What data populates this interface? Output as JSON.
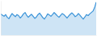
{
  "chart_data": {
    "type": "area",
    "x": [
      1,
      2,
      3,
      4,
      5,
      6,
      7,
      8,
      9,
      10,
      11,
      12,
      13,
      14,
      15,
      16,
      17,
      18,
      19,
      20,
      21,
      22,
      23,
      24,
      25,
      26,
      27,
      28,
      29,
      30,
      31,
      32,
      33,
      34,
      35,
      36,
      37,
      38,
      39,
      40,
      41,
      42,
      43,
      44,
      45,
      46,
      47,
      48,
      49,
      50,
      51,
      52,
      53,
      54,
      55,
      56,
      57,
      58,
      59,
      60
    ],
    "values": [
      62,
      58,
      55,
      60,
      52,
      48,
      56,
      63,
      58,
      54,
      60,
      57,
      50,
      55,
      62,
      66,
      58,
      52,
      57,
      61,
      55,
      49,
      53,
      60,
      64,
      58,
      51,
      47,
      54,
      62,
      59,
      55,
      60,
      66,
      61,
      56,
      52,
      58,
      63,
      60,
      55,
      50,
      56,
      61,
      65,
      60,
      54,
      57,
      63,
      58,
      52,
      47,
      53,
      60,
      57,
      62,
      66,
      70,
      80,
      96
    ],
    "color": "#3a93d8",
    "xlim": [
      1,
      60
    ],
    "xticks": [],
    "ylim": [
      0,
      100
    ],
    "yticks": [],
    "grid": false,
    "tick_labels": false
  }
}
